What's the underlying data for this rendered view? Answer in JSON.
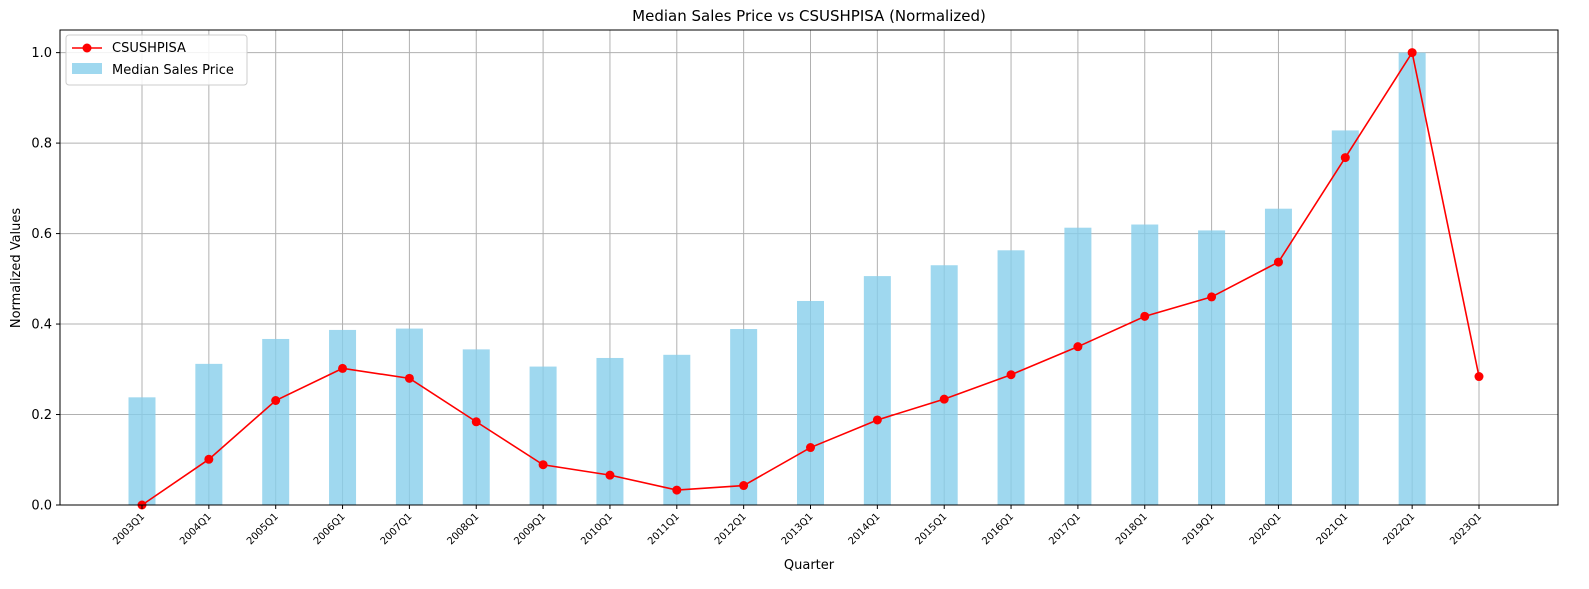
{
  "chart_data": {
    "type": "bar",
    "title": "Median Sales Price vs CSUSHPISA (Normalized)",
    "xlabel": "Quarter",
    "ylabel": "Normalized Values",
    "ylim": [
      0,
      1.05
    ],
    "yticks": [
      "0.0",
      "0.2",
      "0.4",
      "0.6",
      "0.8",
      "1.0"
    ],
    "grid": true,
    "legend_position": "top-left",
    "categories": [
      "2003Q1",
      "2004Q1",
      "2005Q1",
      "2006Q1",
      "2007Q1",
      "2008Q1",
      "2009Q1",
      "2010Q1",
      "2011Q1",
      "2012Q1",
      "2013Q1",
      "2014Q1",
      "2015Q1",
      "2016Q1",
      "2017Q1",
      "2018Q1",
      "2019Q1",
      "2020Q1",
      "2021Q1",
      "2022Q1",
      "2023Q1"
    ],
    "series": [
      {
        "name": "CSUSHPISA",
        "kind": "line",
        "color": "#ff0000",
        "values": [
          0.0,
          0.101,
          0.231,
          0.302,
          0.28,
          0.184,
          0.089,
          0.066,
          0.033,
          0.043,
          0.127,
          0.188,
          0.234,
          0.288,
          0.35,
          0.417,
          0.46,
          0.537,
          0.768,
          1.0,
          0.284
        ]
      },
      {
        "name": "Median Sales Price",
        "kind": "bar",
        "color": "#87ceeb",
        "values": [
          0.238,
          0.312,
          0.367,
          0.387,
          0.39,
          0.344,
          0.306,
          0.325,
          0.332,
          0.389,
          0.451,
          0.506,
          0.53,
          0.563,
          0.613,
          0.62,
          0.607,
          0.655,
          0.828,
          1.0,
          null
        ]
      }
    ]
  }
}
